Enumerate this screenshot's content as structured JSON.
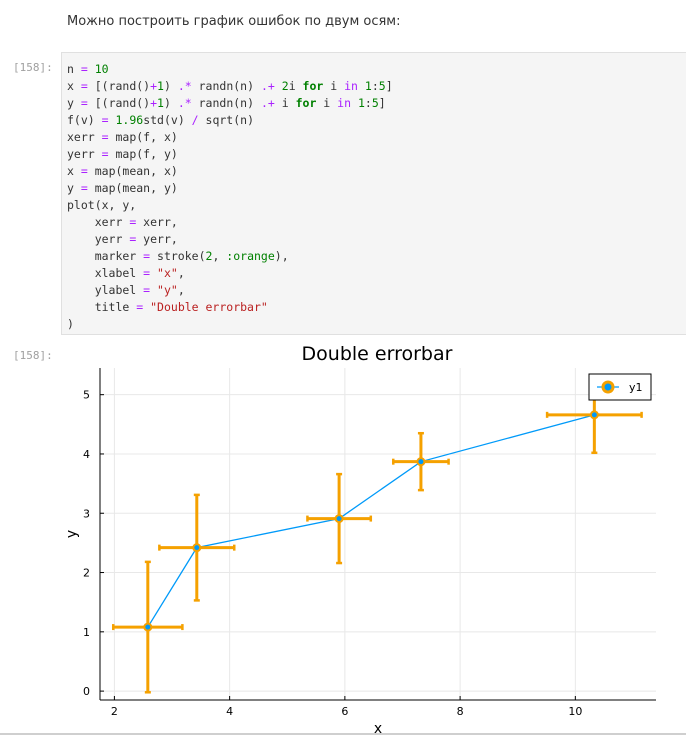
{
  "intro_text": "Можно построить график ошибок по двум осям:",
  "cells": {
    "input_prompt": "[158]:",
    "output_prompt": "[158]:"
  },
  "code_lines": [
    [
      {
        "t": "n ",
        "c": "default"
      },
      {
        "t": "=",
        "c": "op"
      },
      {
        "t": " ",
        "c": "default"
      },
      {
        "t": "10",
        "c": "num"
      }
    ],
    [
      {
        "t": "x ",
        "c": "default"
      },
      {
        "t": "=",
        "c": "op"
      },
      {
        "t": " [(rand()",
        "c": "default"
      },
      {
        "t": "+",
        "c": "op"
      },
      {
        "t": "1",
        "c": "num"
      },
      {
        "t": ") ",
        "c": "default"
      },
      {
        "t": ".*",
        "c": "op"
      },
      {
        "t": " randn(n) ",
        "c": "default"
      },
      {
        "t": ".+",
        "c": "op"
      },
      {
        "t": " ",
        "c": "default"
      },
      {
        "t": "2",
        "c": "num"
      },
      {
        "t": "i ",
        "c": "default"
      },
      {
        "t": "for",
        "c": "kw"
      },
      {
        "t": " i ",
        "c": "default"
      },
      {
        "t": "in",
        "c": "op"
      },
      {
        "t": " ",
        "c": "default"
      },
      {
        "t": "1",
        "c": "num"
      },
      {
        "t": ":",
        "c": "default"
      },
      {
        "t": "5",
        "c": "num"
      },
      {
        "t": "]",
        "c": "default"
      }
    ],
    [
      {
        "t": "y ",
        "c": "default"
      },
      {
        "t": "=",
        "c": "op"
      },
      {
        "t": " [(rand()",
        "c": "default"
      },
      {
        "t": "+",
        "c": "op"
      },
      {
        "t": "1",
        "c": "num"
      },
      {
        "t": ") ",
        "c": "default"
      },
      {
        "t": ".*",
        "c": "op"
      },
      {
        "t": " randn(n) ",
        "c": "default"
      },
      {
        "t": ".+",
        "c": "op"
      },
      {
        "t": " i ",
        "c": "default"
      },
      {
        "t": "for",
        "c": "kw"
      },
      {
        "t": " i ",
        "c": "default"
      },
      {
        "t": "in",
        "c": "op"
      },
      {
        "t": " ",
        "c": "default"
      },
      {
        "t": "1",
        "c": "num"
      },
      {
        "t": ":",
        "c": "default"
      },
      {
        "t": "5",
        "c": "num"
      },
      {
        "t": "]",
        "c": "default"
      }
    ],
    [
      {
        "t": "f(v) ",
        "c": "default"
      },
      {
        "t": "=",
        "c": "op"
      },
      {
        "t": " ",
        "c": "default"
      },
      {
        "t": "1.96",
        "c": "num"
      },
      {
        "t": "std(v) ",
        "c": "default"
      },
      {
        "t": "/",
        "c": "op"
      },
      {
        "t": " sqrt(n)",
        "c": "default"
      }
    ],
    [
      {
        "t": "xerr ",
        "c": "default"
      },
      {
        "t": "=",
        "c": "op"
      },
      {
        "t": " map(f, x)",
        "c": "default"
      }
    ],
    [
      {
        "t": "yerr ",
        "c": "default"
      },
      {
        "t": "=",
        "c": "op"
      },
      {
        "t": " map(f, y)",
        "c": "default"
      }
    ],
    [
      {
        "t": "x ",
        "c": "default"
      },
      {
        "t": "=",
        "c": "op"
      },
      {
        "t": " map(mean, x)",
        "c": "default"
      }
    ],
    [
      {
        "t": "y ",
        "c": "default"
      },
      {
        "t": "=",
        "c": "op"
      },
      {
        "t": " map(mean, y)",
        "c": "default"
      }
    ],
    [
      {
        "t": "plot(x, y,",
        "c": "default"
      }
    ],
    [
      {
        "t": "    xerr ",
        "c": "default"
      },
      {
        "t": "=",
        "c": "op"
      },
      {
        "t": " xerr,",
        "c": "default"
      }
    ],
    [
      {
        "t": "    yerr ",
        "c": "default"
      },
      {
        "t": "=",
        "c": "op"
      },
      {
        "t": " yerr,",
        "c": "default"
      }
    ],
    [
      {
        "t": "    marker ",
        "c": "default"
      },
      {
        "t": "=",
        "c": "op"
      },
      {
        "t": " stroke(",
        "c": "default"
      },
      {
        "t": "2",
        "c": "num"
      },
      {
        "t": ", ",
        "c": "default"
      },
      {
        "t": ":orange",
        "c": "sym"
      },
      {
        "t": "),",
        "c": "default"
      }
    ],
    [
      {
        "t": "    xlabel ",
        "c": "default"
      },
      {
        "t": "=",
        "c": "op"
      },
      {
        "t": " ",
        "c": "default"
      },
      {
        "t": "\"x\"",
        "c": "str"
      },
      {
        "t": ",",
        "c": "default"
      }
    ],
    [
      {
        "t": "    ylabel ",
        "c": "default"
      },
      {
        "t": "=",
        "c": "op"
      },
      {
        "t": " ",
        "c": "default"
      },
      {
        "t": "\"y\"",
        "c": "str"
      },
      {
        "t": ",",
        "c": "default"
      }
    ],
    [
      {
        "t": "    title ",
        "c": "default"
      },
      {
        "t": "=",
        "c": "op"
      },
      {
        "t": " ",
        "c": "default"
      },
      {
        "t": "\"Double errorbar\"",
        "c": "str"
      }
    ],
    [
      {
        "t": ")",
        "c": "default"
      }
    ]
  ],
  "colors": {
    "line": "#009af9",
    "errorbar": "#f5a100",
    "marker_fill": "#009af9",
    "grid": "#e8e8e8",
    "axis": "#000000"
  },
  "chart_data": {
    "type": "scatter",
    "title": "Double errorbar",
    "xlabel": "x",
    "ylabel": "y",
    "xlim": [
      1.75,
      11.4
    ],
    "ylim": [
      -0.15,
      5.45
    ],
    "xticks": [
      2,
      4,
      6,
      8,
      10
    ],
    "yticks": [
      0,
      1,
      2,
      3,
      4,
      5
    ],
    "grid": true,
    "legend": "top-right",
    "series": [
      {
        "name": "y1",
        "x": [
          2.58,
          3.43,
          5.9,
          7.32,
          10.33
        ],
        "y": [
          1.08,
          2.42,
          2.91,
          3.87,
          4.66
        ],
        "xerr": [
          0.6,
          0.65,
          0.55,
          0.48,
          0.82
        ],
        "yerr": [
          1.1,
          0.89,
          0.75,
          0.48,
          0.64
        ]
      }
    ]
  }
}
